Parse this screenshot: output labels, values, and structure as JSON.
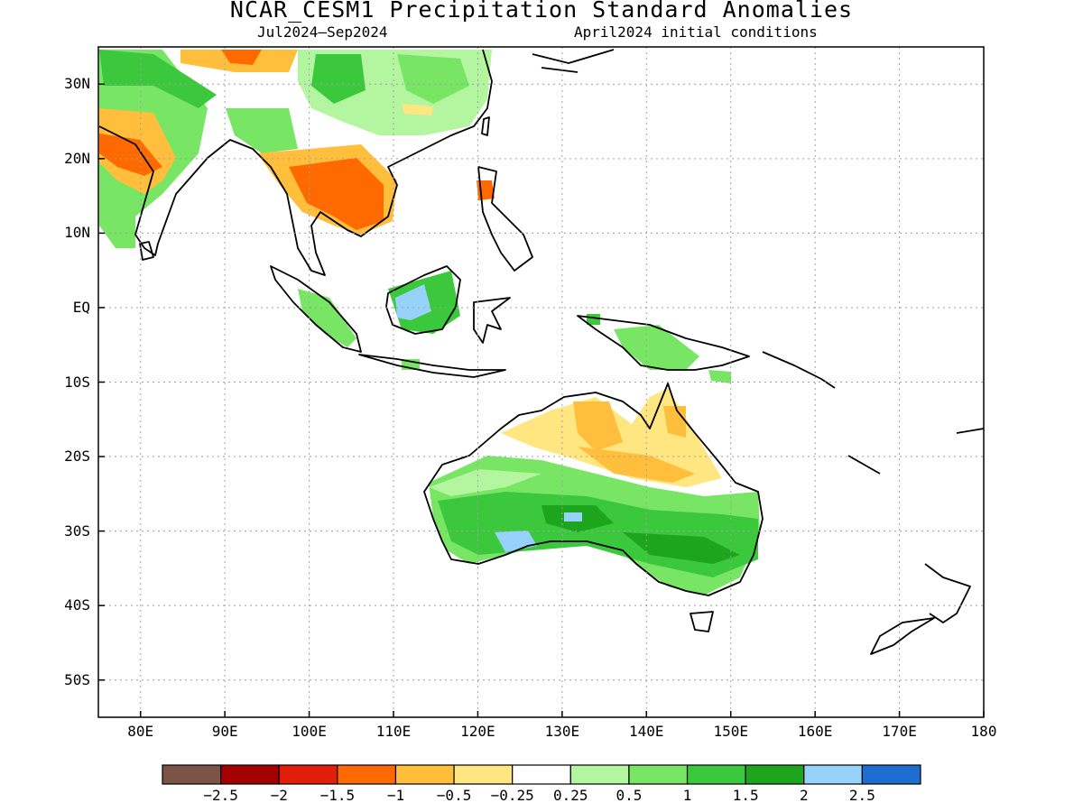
{
  "title": "NCAR_CESM1 Precipitation Standard Anomalies",
  "subtitle_left": "Jul2024–Sep2024",
  "subtitle_right": "April2024 initial conditions",
  "y_axis": {
    "ticks": [
      {
        "lat": 30,
        "label": "30N"
      },
      {
        "lat": 20,
        "label": "20N"
      },
      {
        "lat": 10,
        "label": "10N"
      },
      {
        "lat": 0,
        "label": "EQ"
      },
      {
        "lat": -10,
        "label": "10S"
      },
      {
        "lat": -20,
        "label": "20S"
      },
      {
        "lat": -30,
        "label": "30S"
      },
      {
        "lat": -40,
        "label": "40S"
      },
      {
        "lat": -50,
        "label": "50S"
      }
    ]
  },
  "x_axis": {
    "ticks": [
      {
        "lon": 80,
        "label": "80E"
      },
      {
        "lon": 90,
        "label": "90E"
      },
      {
        "lon": 100,
        "label": "100E"
      },
      {
        "lon": 110,
        "label": "110E"
      },
      {
        "lon": 120,
        "label": "120E"
      },
      {
        "lon": 130,
        "label": "130E"
      },
      {
        "lon": 140,
        "label": "140E"
      },
      {
        "lon": 150,
        "label": "150E"
      },
      {
        "lon": 160,
        "label": "160E"
      },
      {
        "lon": 170,
        "label": "170E"
      },
      {
        "lon": 180,
        "label": "180"
      }
    ]
  },
  "colorbar": {
    "colors": [
      "#7a5446",
      "#a30000",
      "#e01e0a",
      "#ff6a00",
      "#ffbe3c",
      "#ffe680",
      "#ffffff",
      "#b4f5a0",
      "#78e664",
      "#3cc83c",
      "#1ea51e",
      "#96d2fa",
      "#1e6ed2"
    ],
    "labels": [
      "−2.5",
      "−2",
      "−1.5",
      "−1",
      "−0.5",
      "−0.25",
      "0.25",
      "0.5",
      "1",
      "1.5",
      "2",
      "2.5"
    ]
  }
}
